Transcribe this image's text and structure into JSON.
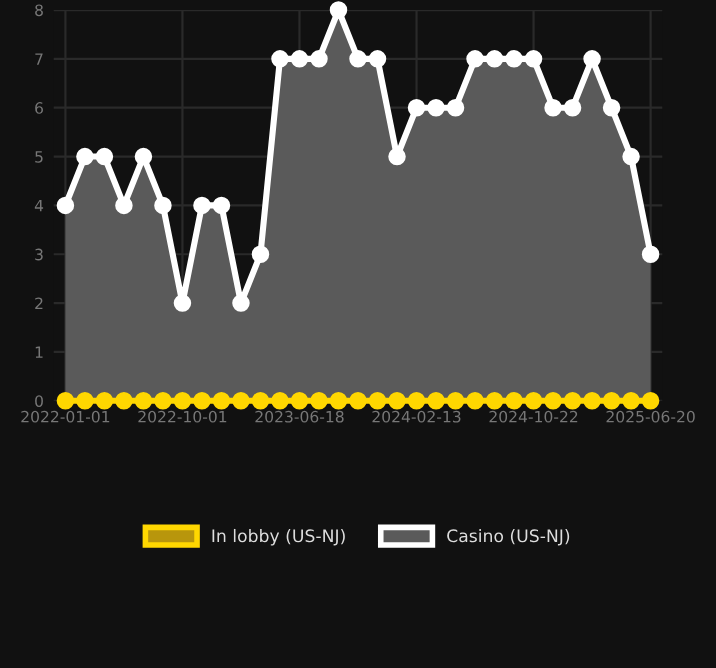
{
  "chart_data": {
    "type": "area",
    "categories": [
      "2022-01-01",
      null,
      null,
      null,
      null,
      null,
      "2022-10-01",
      null,
      null,
      null,
      null,
      null,
      "2023-06-18",
      null,
      null,
      null,
      null,
      null,
      "2024-02-13",
      null,
      null,
      null,
      null,
      null,
      "2024-10-22",
      null,
      null,
      null,
      null,
      null,
      "2025-06-20"
    ],
    "series": [
      {
        "name": "In lobby (US-NJ)",
        "color": "#ffd700",
        "type": "line",
        "values": [
          0,
          0,
          0,
          0,
          0,
          0,
          0,
          0,
          0,
          0,
          0,
          0,
          0,
          0,
          0,
          0,
          0,
          0,
          0,
          0,
          0,
          0,
          0,
          0,
          0,
          0,
          0,
          0,
          0,
          0,
          0
        ]
      },
      {
        "name": "Casino (US-NJ)",
        "color": "#ffffff",
        "values": [
          4,
          5,
          5,
          4,
          5,
          4,
          2,
          4,
          4,
          2,
          3,
          7,
          7,
          7,
          8,
          7,
          7,
          5,
          6,
          6,
          6,
          7,
          7,
          7,
          7,
          6,
          6,
          7,
          6,
          5,
          3
        ]
      }
    ],
    "ylim": [
      0,
      8
    ],
    "yticks": [
      0,
      1,
      2,
      3,
      4,
      5,
      6,
      7,
      8
    ],
    "grid": true,
    "legend": "bottom",
    "marker": "circle",
    "line_style": "solid"
  }
}
